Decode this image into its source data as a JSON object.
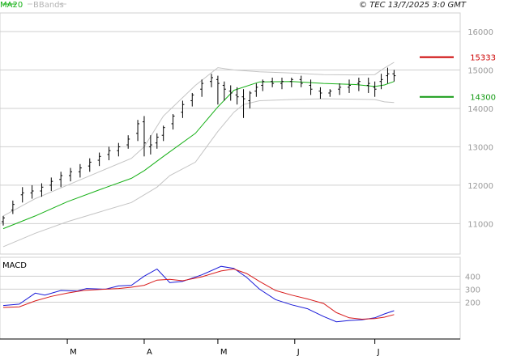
{
  "header": {
    "legend_ma": "MA20",
    "legend_bb": "BBands",
    "timestamp": "© TEC 13/7/2025 3:0 GMT"
  },
  "colors": {
    "ma": "#16b016",
    "bb": "#c4c4c4",
    "price": "#000000",
    "macd": "#1a1ad8",
    "signal": "#d81a1a",
    "grid": "#cfcfcf",
    "axis_text": "#9a9a9a",
    "resistance": "#cc0000",
    "support": "#119911"
  },
  "chart_data": [
    {
      "type": "ohlc",
      "title": "",
      "ylim": [
        10250,
        16400
      ],
      "y_ticks": [
        11000,
        12000,
        13000,
        14000,
        15000,
        16000
      ],
      "y_tick_labels": [
        "11000",
        "12000",
        "13000",
        "14000",
        "15000",
        "16000"
      ],
      "x_ticks": [
        {
          "label": "M",
          "index": 20
        },
        {
          "label": "A",
          "index": 44
        },
        {
          "label": "M",
          "index": 67
        },
        {
          "label": "J",
          "index": 91
        },
        {
          "label": "J",
          "index": 116
        }
      ],
      "x_count": 130,
      "grid": true,
      "series": [
        {
          "name": "MA20",
          "kind": "line",
          "x": [
            0,
            10,
            20,
            30,
            40,
            44,
            50,
            60,
            67,
            72,
            80,
            90,
            100,
            110,
            116,
            119,
            122
          ],
          "values": [
            10870,
            11200,
            11570,
            11880,
            12180,
            12380,
            12750,
            13350,
            14040,
            14470,
            14690,
            14700,
            14650,
            14620,
            14570,
            14610,
            14700
          ]
        },
        {
          "name": "BB Upper",
          "kind": "line",
          "x": [
            0,
            10,
            20,
            30,
            40,
            44,
            50,
            60,
            67,
            72,
            80,
            90,
            100,
            110,
            116,
            119,
            122
          ],
          "values": [
            11200,
            11650,
            12000,
            12350,
            12700,
            13000,
            13800,
            14600,
            15060,
            15000,
            14950,
            14920,
            14880,
            14870,
            14880,
            15050,
            15200
          ]
        },
        {
          "name": "BB Lower",
          "kind": "line",
          "x": [
            0,
            10,
            20,
            30,
            40,
            44,
            48,
            52,
            60,
            67,
            72,
            75,
            80,
            90,
            100,
            110,
            116,
            119,
            122
          ],
          "values": [
            10400,
            10750,
            11050,
            11300,
            11550,
            11750,
            11950,
            12250,
            12600,
            13400,
            13900,
            14100,
            14200,
            14230,
            14250,
            14240,
            14230,
            14170,
            14150
          ]
        }
      ],
      "ohlc": {
        "x": [
          0,
          3,
          6,
          9,
          12,
          15,
          18,
          21,
          24,
          27,
          30,
          33,
          36,
          39,
          42,
          44,
          46,
          48,
          50,
          53,
          56,
          59,
          62,
          65,
          67,
          69,
          71,
          73,
          75,
          77,
          79,
          81,
          84,
          87,
          90,
          93,
          96,
          99,
          102,
          105,
          108,
          111,
          114,
          116,
          118,
          120,
          122
        ],
        "open": [
          11050,
          11350,
          11750,
          11800,
          11850,
          12000,
          12150,
          12250,
          12350,
          12500,
          12650,
          12800,
          12900,
          13050,
          13350,
          13650,
          13000,
          13100,
          13300,
          13600,
          13900,
          14200,
          14500,
          14700,
          14750,
          14600,
          14450,
          14350,
          14300,
          14200,
          14450,
          14600,
          14700,
          14650,
          14700,
          14750,
          14600,
          14450,
          14400,
          14500,
          14550,
          14650,
          14600,
          14550,
          14700,
          14850,
          14900
        ],
        "high": [
          11200,
          11600,
          11950,
          12000,
          12050,
          12200,
          12350,
          12450,
          12550,
          12700,
          12850,
          13000,
          13100,
          13300,
          13700,
          13800,
          13300,
          13350,
          13550,
          13850,
          14200,
          14400,
          14750,
          14900,
          14850,
          14700,
          14600,
          14550,
          14500,
          14450,
          14650,
          14750,
          14800,
          14800,
          14800,
          14850,
          14750,
          14550,
          14500,
          14650,
          14750,
          14800,
          14800,
          14700,
          14900,
          15060,
          15000
        ],
        "low": [
          10950,
          11250,
          11550,
          11650,
          11700,
          11850,
          11950,
          12100,
          12200,
          12350,
          12500,
          12650,
          12750,
          12950,
          13150,
          12750,
          12800,
          12950,
          13150,
          13450,
          13750,
          14050,
          14300,
          14550,
          14100,
          14200,
          14200,
          14100,
          13750,
          14000,
          14300,
          14450,
          14550,
          14500,
          14550,
          14550,
          14350,
          14250,
          14300,
          14350,
          14400,
          14450,
          14400,
          14300,
          14500,
          14650,
          14700
        ],
        "close": [
          11150,
          11500,
          11800,
          11850,
          11950,
          12100,
          12250,
          12350,
          12450,
          12600,
          12750,
          12900,
          13000,
          13200,
          13600,
          13100,
          13050,
          13250,
          13500,
          13800,
          14100,
          14350,
          14650,
          14800,
          14650,
          14500,
          14400,
          14300,
          14250,
          14400,
          14550,
          14700,
          14650,
          14700,
          14750,
          14650,
          14500,
          14400,
          14450,
          14550,
          14600,
          14700,
          14650,
          14500,
          14750,
          14900,
          14850
        ]
      },
      "levels": [
        {
          "name": "resistance",
          "value": 15333,
          "label": "15333"
        },
        {
          "name": "support",
          "value": 14300,
          "label": "14300"
        }
      ]
    },
    {
      "type": "line",
      "title": "MACD",
      "ylim": [
        -70,
        520
      ],
      "y_ticks": [
        200,
        300,
        400
      ],
      "y_tick_labels": [
        "200",
        "300",
        "400"
      ],
      "grid": true,
      "series": [
        {
          "name": "MACD",
          "x": [
            0,
            5,
            10,
            13,
            18,
            23,
            26,
            32,
            36,
            40,
            44,
            48,
            52,
            56,
            62,
            68,
            72,
            76,
            80,
            85,
            90,
            95,
            100,
            104,
            108,
            112,
            116,
            119,
            122
          ],
          "values": [
            175,
            185,
            270,
            255,
            290,
            285,
            305,
            300,
            325,
            330,
            400,
            455,
            350,
            360,
            410,
            475,
            460,
            390,
            300,
            220,
            180,
            150,
            90,
            50,
            60,
            65,
            80,
            110,
            135
          ]
        },
        {
          "name": "Signal",
          "x": [
            0,
            5,
            10,
            15,
            20,
            25,
            32,
            36,
            40,
            44,
            48,
            52,
            56,
            62,
            68,
            72,
            76,
            80,
            85,
            90,
            95,
            100,
            104,
            108,
            112,
            116,
            119,
            122
          ],
          "values": [
            160,
            165,
            210,
            245,
            270,
            290,
            300,
            305,
            315,
            330,
            370,
            375,
            365,
            395,
            440,
            455,
            420,
            360,
            290,
            255,
            225,
            190,
            120,
            80,
            70,
            75,
            85,
            105
          ]
        }
      ]
    }
  ]
}
